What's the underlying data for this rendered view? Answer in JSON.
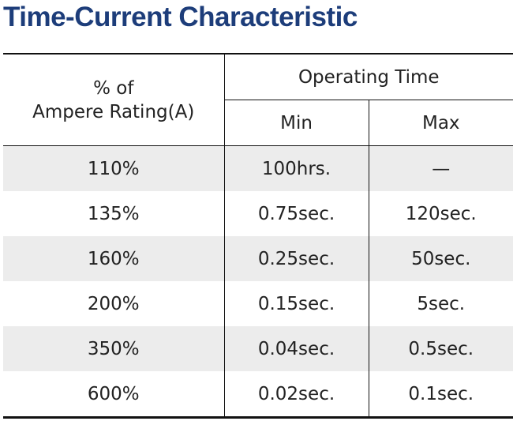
{
  "title": "Time-Current Characteristic",
  "table": {
    "header": {
      "rating": "% of\nAmpere Rating(A)",
      "group": "Operating Time",
      "min": "Min",
      "max": "Max"
    },
    "rows": [
      [
        "110%",
        "100hrs.",
        "—"
      ],
      [
        "135%",
        "0.75sec.",
        "120sec."
      ],
      [
        "160%",
        "0.25sec.",
        "50sec."
      ],
      [
        "200%",
        "0.15sec.",
        "5sec."
      ],
      [
        "350%",
        "0.04sec.",
        "0.5sec."
      ],
      [
        "600%",
        "0.02sec.",
        "0.1sec."
      ]
    ]
  }
}
